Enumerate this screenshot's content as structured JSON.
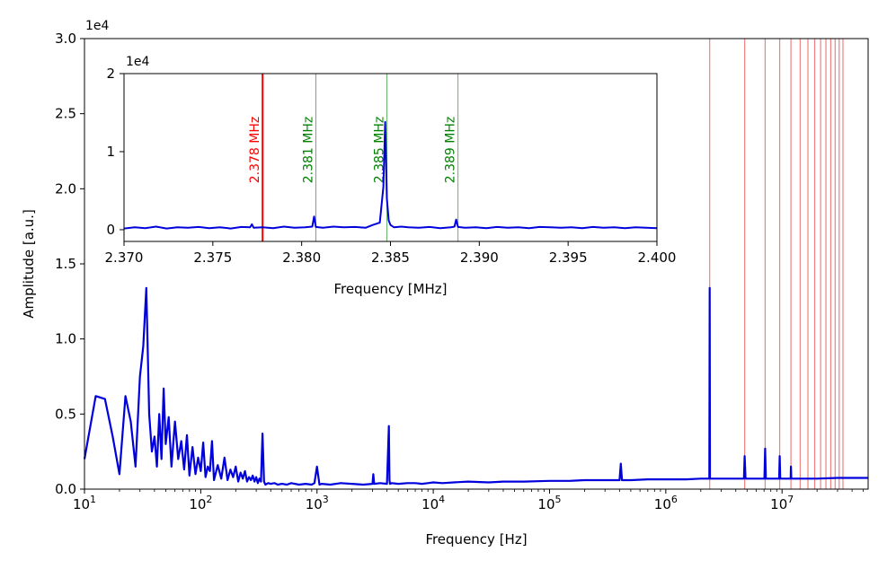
{
  "chart_data": [
    {
      "id": "main",
      "type": "line",
      "title": "",
      "xlabel": "Frequency [Hz]",
      "ylabel": "Amplitude [a.u.]",
      "xscale": "log",
      "xlim": [
        10,
        55000000
      ],
      "ylim": [
        0,
        30000
      ],
      "y_offset_text": "1e4",
      "xticks": [
        {
          "value": 10,
          "base": "10",
          "exp": "1"
        },
        {
          "value": 100,
          "base": "10",
          "exp": "2"
        },
        {
          "value": 1000,
          "base": "10",
          "exp": "3"
        },
        {
          "value": 10000,
          "base": "10",
          "exp": "4"
        },
        {
          "value": 100000,
          "base": "10",
          "exp": "5"
        },
        {
          "value": 1000000,
          "base": "10",
          "exp": "6"
        },
        {
          "value": 10000000,
          "base": "10",
          "exp": "7"
        }
      ],
      "yticks": [
        {
          "value": 0,
          "label": "0.0"
        },
        {
          "value": 5000,
          "label": "0.5"
        },
        {
          "value": 10000,
          "label": "1.0"
        },
        {
          "value": 15000,
          "label": "1.5"
        },
        {
          "value": 20000,
          "label": "2.0"
        },
        {
          "value": 25000,
          "label": "2.5"
        },
        {
          "value": 30000,
          "label": "3.0"
        }
      ],
      "series": [
        {
          "color": "#0000dd",
          "x": [
            10,
            12.5,
            15,
            17.5,
            20,
            22.5,
            25,
            27.5,
            30,
            32,
            34,
            36,
            38,
            40,
            42,
            44,
            46,
            48,
            50,
            53,
            56,
            60,
            64,
            68,
            72,
            76,
            80,
            85,
            90,
            95,
            100,
            105,
            110,
            115,
            120,
            125,
            130,
            140,
            150,
            160,
            170,
            180,
            190,
            200,
            210,
            220,
            230,
            240,
            250,
            260,
            270,
            280,
            290,
            300,
            310,
            320,
            330,
            340,
            350,
            360,
            380,
            400,
            430,
            460,
            500,
            550,
            600,
            700,
            800,
            900,
            950,
            1000,
            1050,
            1100,
            1300,
            1600,
            2000,
            2500,
            3000,
            3050,
            3100,
            3500,
            4000,
            4150,
            4200,
            4250,
            4400,
            5000,
            6000,
            7000,
            8000,
            9000,
            10000,
            12000,
            15000,
            20000,
            30000,
            40000,
            60000,
            100000,
            150000,
            200000,
            300000,
            400000,
            410000,
            420000,
            500000,
            700000,
            1000000,
            1500000,
            2000000,
            2370000,
            2385000,
            2400000,
            3000000,
            4000000,
            4700000,
            4770000,
            4850000,
            6000000,
            7050000,
            7150000,
            7250000,
            8500000,
            9450000,
            9540000,
            9650000,
            11000000,
            11850000,
            11925000,
            12000000,
            15000000,
            20000000,
            30000000,
            40000000,
            55000000
          ],
          "y": [
            2000,
            6200,
            6000,
            3500,
            1000,
            6200,
            4500,
            1500,
            7500,
            9500,
            13400,
            5000,
            2500,
            3500,
            1500,
            5000,
            2000,
            6700,
            3000,
            4800,
            1500,
            4500,
            2000,
            3200,
            1300,
            3600,
            900,
            2800,
            1000,
            2100,
            1200,
            3100,
            800,
            1500,
            1200,
            3200,
            600,
            1600,
            700,
            2100,
            600,
            1300,
            800,
            1500,
            500,
            1100,
            700,
            1200,
            500,
            800,
            600,
            900,
            500,
            800,
            400,
            700,
            500,
            3700,
            500,
            300,
            400,
            350,
            400,
            300,
            350,
            300,
            400,
            300,
            350,
            300,
            400,
            1500,
            300,
            350,
            300,
            400,
            350,
            300,
            350,
            1000,
            350,
            400,
            350,
            4200,
            600,
            350,
            400,
            350,
            400,
            400,
            350,
            400,
            450,
            400,
            450,
            500,
            450,
            500,
            500,
            550,
            550,
            600,
            600,
            600,
            1700,
            600,
            600,
            650,
            650,
            650,
            700,
            700,
            13400,
            700,
            700,
            700,
            700,
            2200,
            700,
            700,
            700,
            2700,
            700,
            700,
            700,
            2200,
            700,
            700,
            700,
            1500,
            700,
            700,
            700,
            750,
            750,
            750
          ]
        }
      ],
      "vlines": {
        "color": "#f08080",
        "x": [
          2385000,
          4770000,
          7155000,
          9540000,
          11925000,
          14310000,
          16695000,
          19080000,
          21465000,
          23850000,
          26235000,
          28620000,
          31005000,
          33390000
        ]
      }
    },
    {
      "id": "inset",
      "type": "line",
      "title": "",
      "xlabel": "Frequency [MHz]",
      "ylabel": "",
      "xlim": [
        2.37,
        2.4
      ],
      "ylim": [
        -1500,
        20000
      ],
      "y_offset_text": "1e4",
      "xticks": [
        {
          "value": 2.37,
          "label": "2.370"
        },
        {
          "value": 2.375,
          "label": "2.375"
        },
        {
          "value": 2.38,
          "label": "2.380"
        },
        {
          "value": 2.385,
          "label": "2.385"
        },
        {
          "value": 2.39,
          "label": "2.390"
        },
        {
          "value": 2.395,
          "label": "2.395"
        },
        {
          "value": 2.4,
          "label": "2.400"
        }
      ],
      "yticks": [
        {
          "value": 0,
          "label": "0"
        },
        {
          "value": 10000,
          "label": "1"
        },
        {
          "value": 20000,
          "label": "2"
        }
      ],
      "series": [
        {
          "color": "#0000dd",
          "x": [
            2.37,
            2.3706,
            2.3712,
            2.3718,
            2.3724,
            2.373,
            2.3736,
            2.3742,
            2.3748,
            2.3754,
            2.376,
            2.3766,
            2.3771,
            2.3772,
            2.3773,
            2.3778,
            2.3784,
            2.379,
            2.3796,
            2.3802,
            2.3806,
            2.3807,
            2.3808,
            2.3812,
            2.3818,
            2.3824,
            2.383,
            2.3836,
            2.384,
            2.3844,
            2.3846,
            2.3847,
            2.3848,
            2.3849,
            2.385,
            2.3852,
            2.3856,
            2.386,
            2.3866,
            2.3872,
            2.3878,
            2.3884,
            2.3886,
            2.3887,
            2.3888,
            2.3892,
            2.3898,
            2.3904,
            2.391,
            2.3916,
            2.3922,
            2.3928,
            2.3934,
            2.394,
            2.3946,
            2.3952,
            2.3958,
            2.3964,
            2.397,
            2.3976,
            2.3982,
            2.3988,
            2.3994,
            2.4
          ],
          "y": [
            150,
            300,
            200,
            400,
            150,
            300,
            250,
            350,
            200,
            300,
            150,
            350,
            300,
            700,
            250,
            300,
            200,
            400,
            250,
            300,
            400,
            1700,
            350,
            250,
            400,
            300,
            350,
            250,
            600,
            900,
            5500,
            13800,
            4000,
            1200,
            600,
            300,
            400,
            300,
            250,
            350,
            200,
            300,
            400,
            1300,
            350,
            250,
            300,
            200,
            350,
            250,
            300,
            200,
            350,
            300,
            250,
            300,
            200,
            350,
            250,
            300,
            200,
            300,
            250,
            200
          ]
        }
      ],
      "markers": [
        {
          "x": 2.3778,
          "label": "2.378 MHz",
          "color": "#ff0000",
          "width": 2
        },
        {
          "x": 2.3808,
          "label": "2.381 MHz",
          "color": "#008000",
          "width": 1
        },
        {
          "x": 2.3848,
          "label": "2.385 MHz",
          "color": "#008000",
          "width": 1
        },
        {
          "x": 2.3888,
          "label": "2.389 MHz",
          "color": "#008000",
          "width": 1
        }
      ]
    }
  ]
}
